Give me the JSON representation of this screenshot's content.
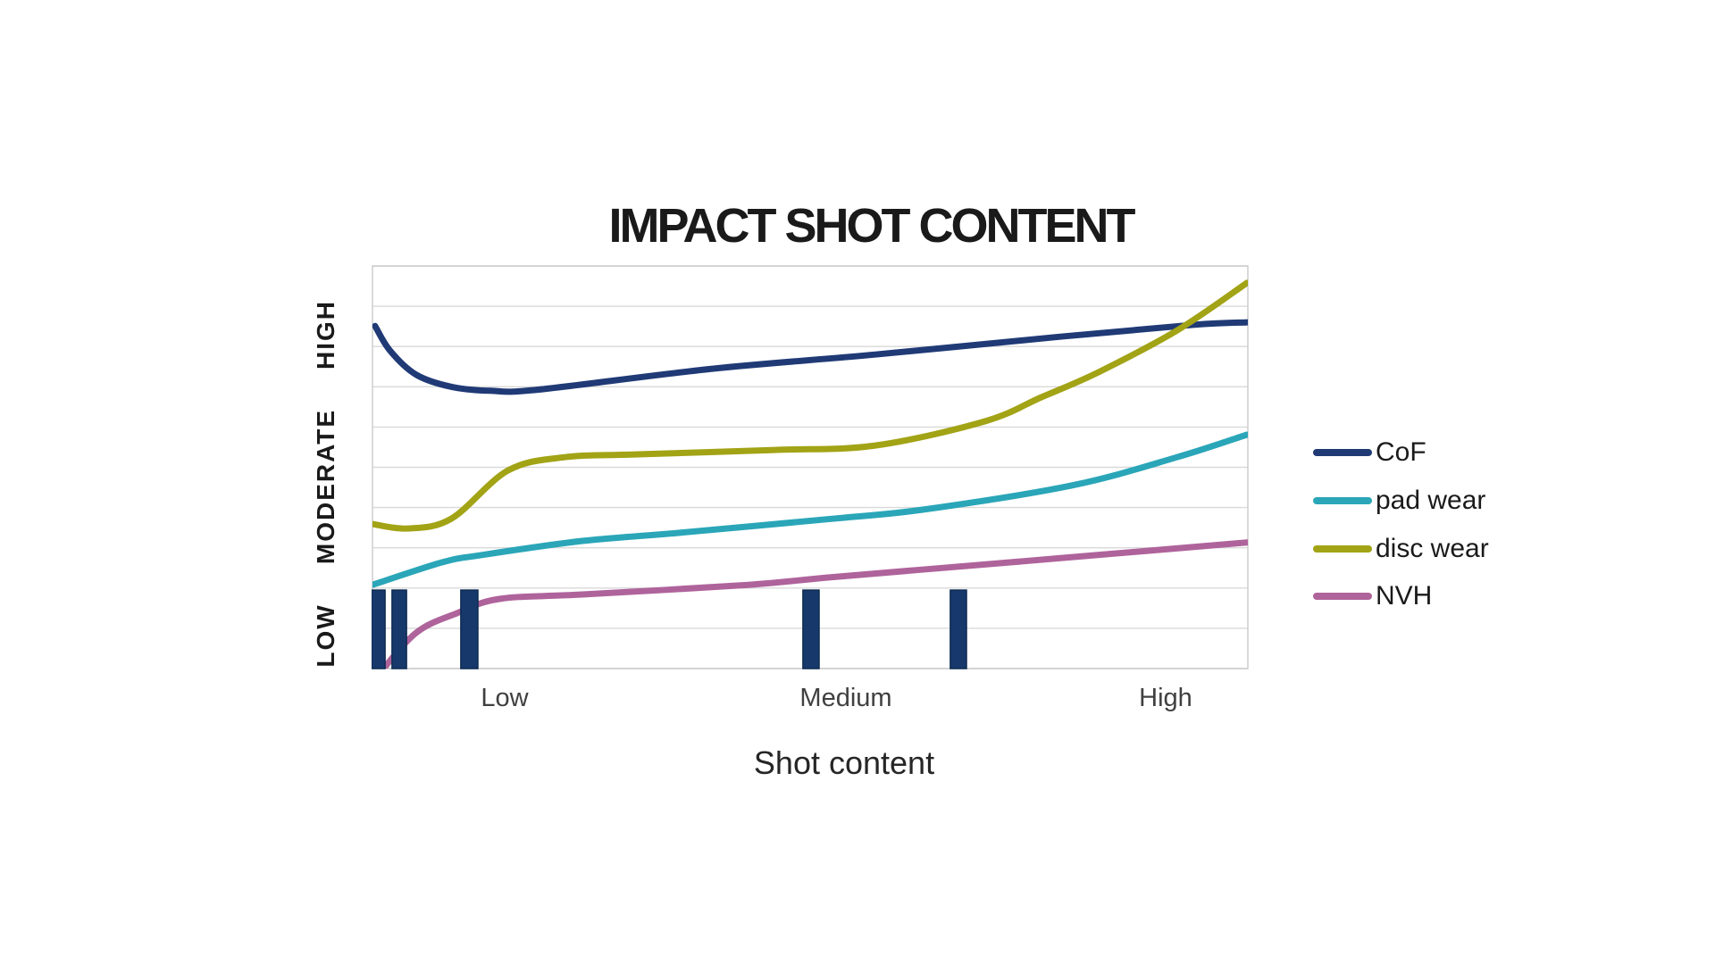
{
  "title": "IMPACT SHOT CONTENT",
  "x_axis": {
    "title": "Shot content",
    "ticks": [
      "Low",
      "Medium",
      "High"
    ]
  },
  "y_axis": {
    "labels": [
      "HIGH",
      "MODERATE",
      "LOW"
    ]
  },
  "legend": [
    {
      "label": "CoF"
    },
    {
      "label": "pad wear"
    },
    {
      "label": "disc wear"
    },
    {
      "label": "NVH"
    }
  ],
  "colors": {
    "grid": "#D9D9D9",
    "plot_border": "#CBCBCB",
    "bar_fill": "#17386B",
    "bar_stroke": "#0D2B52",
    "title_text": "#1A1A1A",
    "tick_text": "#404040",
    "background": "#FFFFFF"
  },
  "chart_data": {
    "type": "line",
    "title": "IMPACT SHOT CONTENT",
    "xlabel": "Shot content",
    "ylabel": "",
    "x_ticks": [
      "Low",
      "Medium",
      "High"
    ],
    "x_tick_positions": [
      0.15,
      0.54,
      0.91
    ],
    "x_range": [
      0,
      1
    ],
    "y_range": [
      0,
      10
    ],
    "y_band_labels_bottom_to_top": [
      "LOW",
      "MODERATE",
      "HIGH"
    ],
    "grid": "horizontal gridlines, 10 equal rows",
    "legend_position": "right",
    "series": [
      {
        "name": "CoF",
        "color": "#203A76",
        "points": [
          [
            0.003,
            8.51
          ],
          [
            0.02,
            7.9
          ],
          [
            0.05,
            7.3
          ],
          [
            0.09,
            7.0
          ],
          [
            0.135,
            6.9
          ],
          [
            0.19,
            6.93
          ],
          [
            0.39,
            7.45
          ],
          [
            0.575,
            7.8
          ],
          [
            0.78,
            8.23
          ],
          [
            0.94,
            8.54
          ],
          [
            1.0,
            8.6
          ]
        ]
      },
      {
        "name": "pad wear",
        "color": "#2AA6B8",
        "points": [
          [
            0.0,
            2.08
          ],
          [
            0.08,
            2.64
          ],
          [
            0.125,
            2.82
          ],
          [
            0.24,
            3.17
          ],
          [
            0.35,
            3.37
          ],
          [
            0.53,
            3.73
          ],
          [
            0.63,
            3.95
          ],
          [
            0.8,
            4.55
          ],
          [
            0.92,
            5.25
          ],
          [
            1.0,
            5.81
          ]
        ]
      },
      {
        "name": "disc wear",
        "color": "#A2A315",
        "points": [
          [
            0.0,
            3.59
          ],
          [
            0.04,
            3.48
          ],
          [
            0.09,
            3.72
          ],
          [
            0.155,
            4.92
          ],
          [
            0.22,
            5.25
          ],
          [
            0.3,
            5.32
          ],
          [
            0.46,
            5.43
          ],
          [
            0.575,
            5.54
          ],
          [
            0.7,
            6.14
          ],
          [
            0.765,
            6.74
          ],
          [
            0.83,
            7.36
          ],
          [
            0.92,
            8.4
          ],
          [
            1.0,
            9.58
          ]
        ]
      },
      {
        "name": "NVH",
        "color": "#AF639B",
        "points": [
          [
            0.007,
            -0.15
          ],
          [
            0.05,
            0.89
          ],
          [
            0.096,
            1.37
          ],
          [
            0.145,
            1.73
          ],
          [
            0.24,
            1.84
          ],
          [
            0.43,
            2.08
          ],
          [
            0.53,
            2.28
          ],
          [
            0.72,
            2.62
          ],
          [
            0.84,
            2.84
          ],
          [
            1.0,
            3.13
          ]
        ]
      }
    ],
    "marker_bars": {
      "description": "solid navy vertical bars rising from x-axis",
      "value_top": 1.95,
      "centers_x": [
        0.0066,
        0.0306,
        0.1108,
        0.5015,
        0.67
      ],
      "widths_x": [
        0.0155,
        0.0165,
        0.0195,
        0.0185,
        0.0185
      ]
    }
  }
}
